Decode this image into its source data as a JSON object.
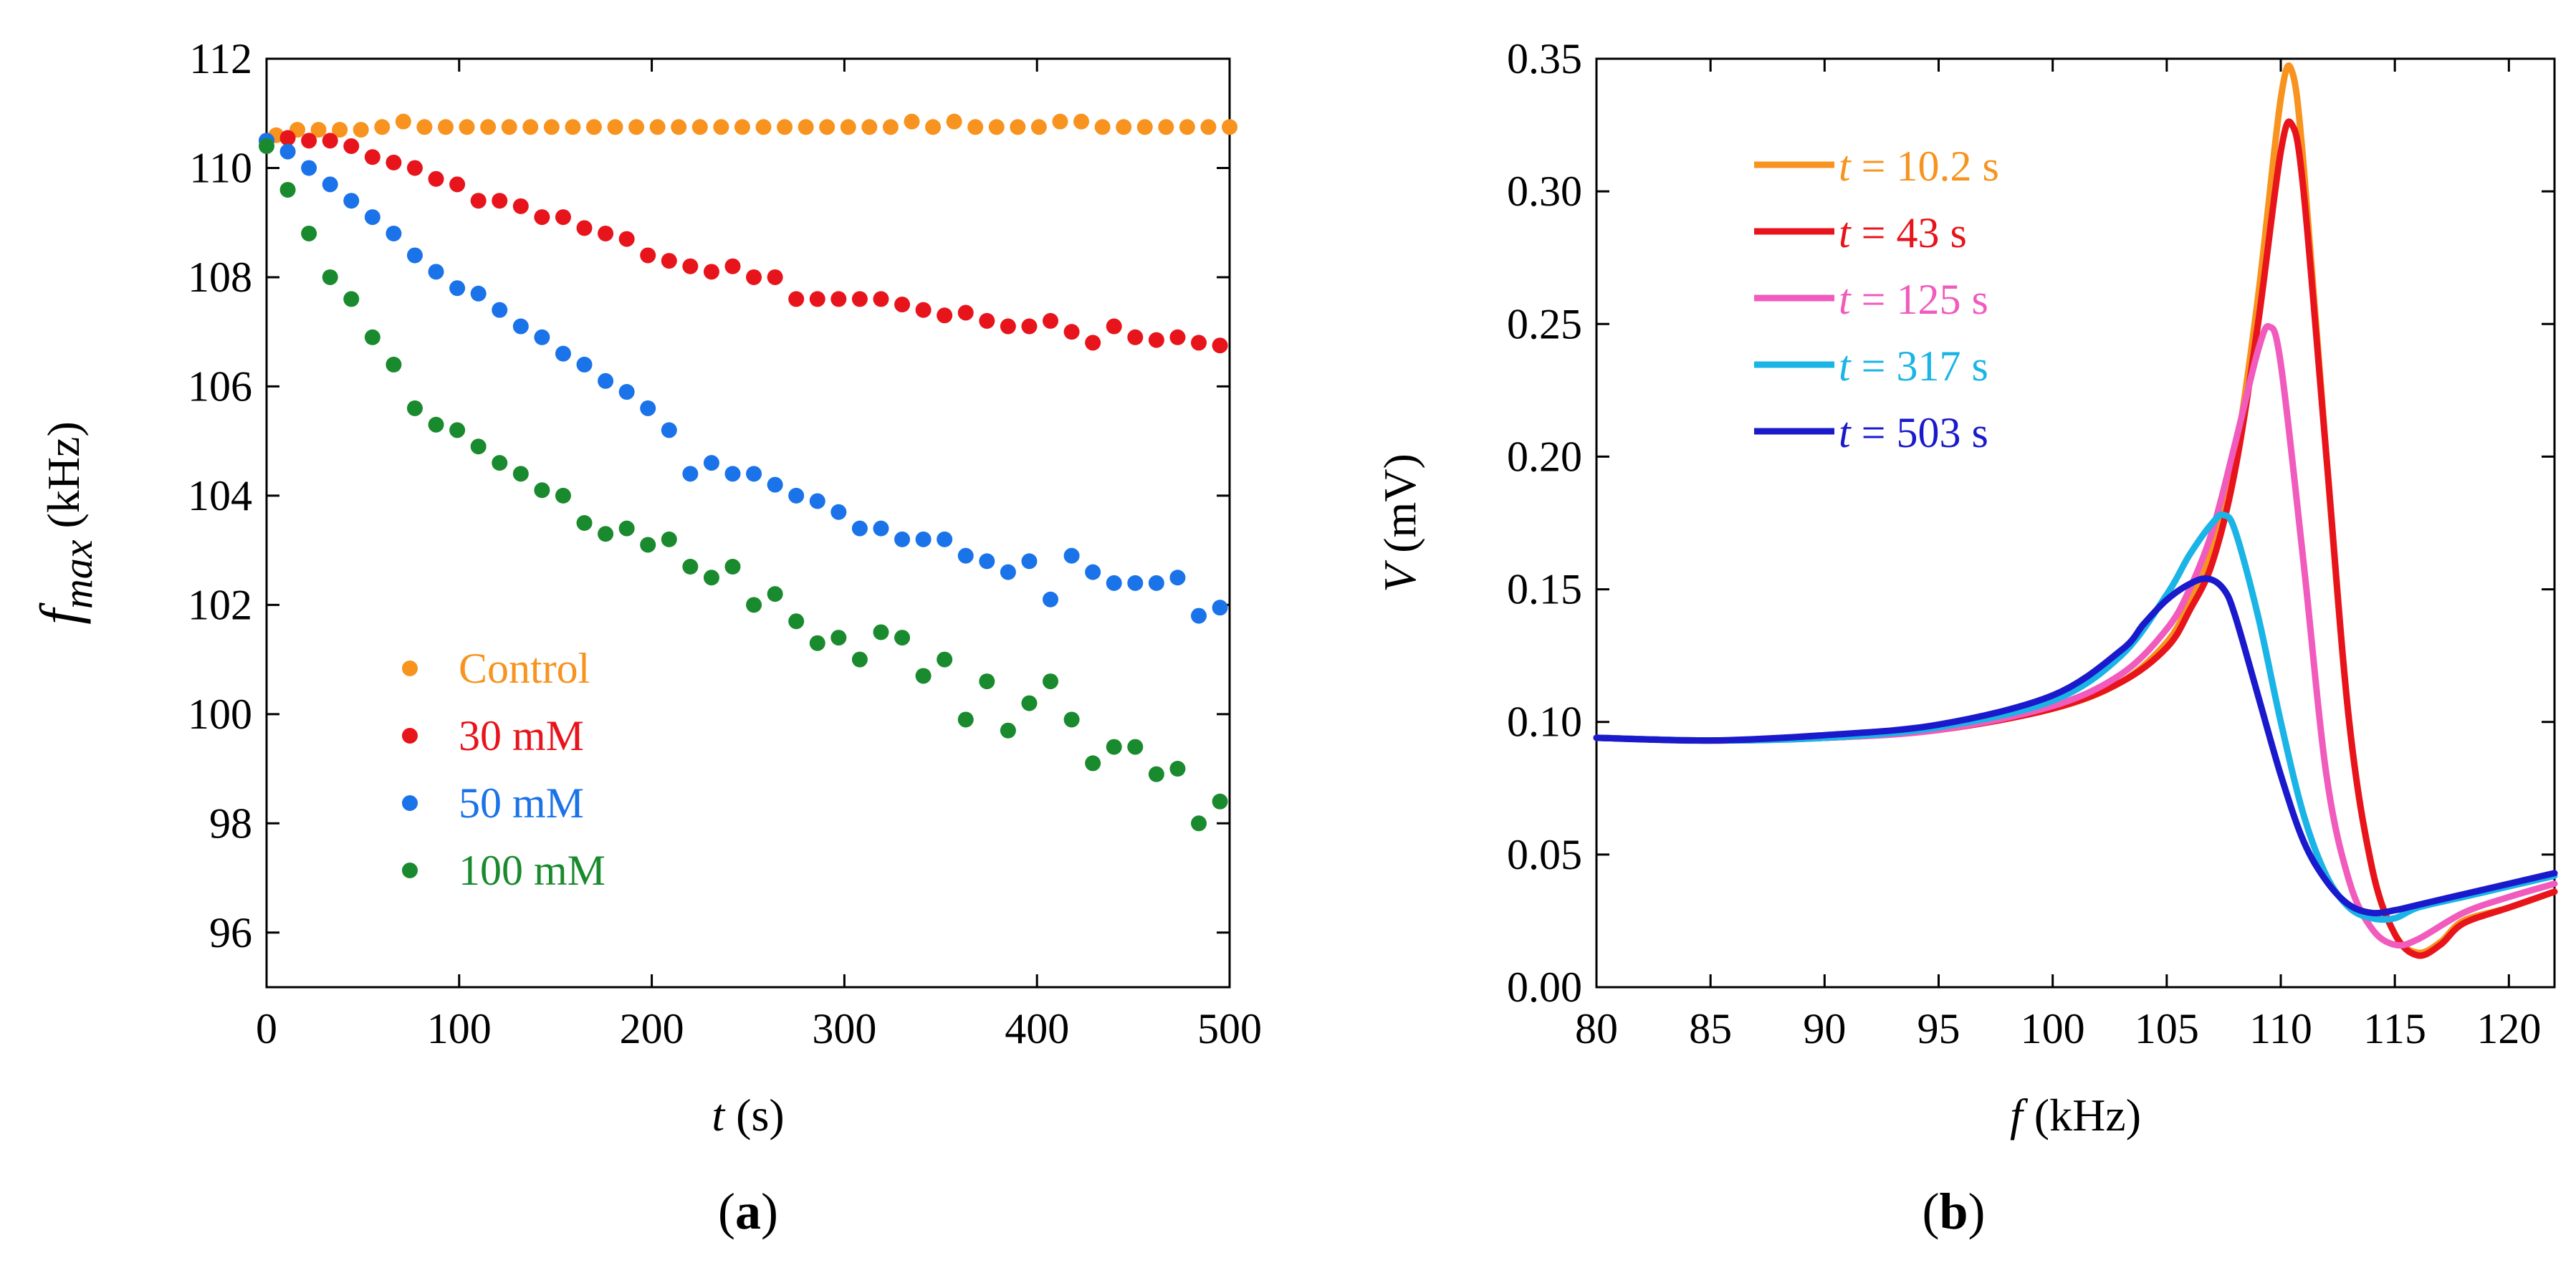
{
  "chart_data": [
    {
      "type": "scatter",
      "panel_label": "(a)",
      "xlabel": {
        "var": "t",
        "unit": " (s)"
      },
      "ylabel": {
        "var": "f",
        "sub": "max",
        "unit": " (kHz)"
      },
      "xlim": [
        0,
        500
      ],
      "ylim": [
        95,
        112
      ],
      "xticks": [
        0,
        100,
        200,
        300,
        400,
        500
      ],
      "yticks": [
        96,
        98,
        100,
        102,
        104,
        106,
        108,
        110,
        112
      ],
      "legend_position": "bottom-left",
      "series": [
        {
          "name": "Control",
          "color": "#f7931e",
          "x": [
            5,
            16,
            27,
            38,
            49,
            60,
            71,
            82,
            93,
            104,
            115,
            126,
            137,
            148,
            159,
            170,
            181,
            192,
            203,
            214,
            225,
            236,
            247,
            258,
            269,
            280,
            291,
            302,
            313,
            324,
            335,
            346,
            357,
            368,
            379,
            390,
            401,
            412,
            423,
            434,
            445,
            456,
            467,
            478,
            489,
            500
          ],
          "y": [
            110.6,
            110.7,
            110.7,
            110.7,
            110.7,
            110.75,
            110.85,
            110.75,
            110.75,
            110.75,
            110.75,
            110.75,
            110.75,
            110.75,
            110.75,
            110.75,
            110.75,
            110.75,
            110.75,
            110.75,
            110.75,
            110.75,
            110.75,
            110.75,
            110.75,
            110.75,
            110.75,
            110.75,
            110.75,
            110.75,
            110.85,
            110.75,
            110.85,
            110.75,
            110.75,
            110.75,
            110.75,
            110.85,
            110.85,
            110.75,
            110.75,
            110.75,
            110.75,
            110.75,
            110.75,
            110.75
          ]
        },
        {
          "name": "30 mM",
          "color": "#e8141b",
          "x": [
            0,
            11,
            22,
            33,
            44,
            55,
            66,
            77,
            88,
            99,
            110,
            121,
            132,
            143,
            154,
            165,
            176,
            187,
            198,
            209,
            220,
            231,
            242,
            253,
            264,
            275,
            286,
            297,
            308,
            319,
            330,
            341,
            352,
            363,
            374,
            385,
            396,
            407,
            418,
            429,
            440,
            451,
            462,
            473,
            484,
            495
          ],
          "y": [
            110.5,
            110.55,
            110.5,
            110.5,
            110.4,
            110.2,
            110.1,
            110.0,
            109.8,
            109.7,
            109.4,
            109.4,
            109.3,
            109.1,
            109.1,
            108.9,
            108.8,
            108.7,
            108.4,
            108.3,
            108.2,
            108.1,
            108.2,
            108.0,
            108.0,
            107.6,
            107.6,
            107.6,
            107.6,
            107.6,
            107.5,
            107.4,
            107.3,
            107.35,
            107.2,
            107.1,
            107.1,
            107.2,
            107.0,
            106.8,
            107.1,
            106.9,
            106.85,
            106.9,
            106.8,
            106.75
          ]
        },
        {
          "name": "50 mM",
          "color": "#1a73e8",
          "x": [
            0,
            11,
            22,
            33,
            44,
            55,
            66,
            77,
            88,
            99,
            110,
            121,
            132,
            143,
            154,
            165,
            176,
            187,
            198,
            209,
            220,
            231,
            242,
            253,
            264,
            275,
            286,
            297,
            308,
            319,
            330,
            341,
            352,
            363,
            374,
            385,
            396,
            407,
            418,
            429,
            440,
            451,
            462,
            473,
            484,
            495
          ],
          "y": [
            110.5,
            110.3,
            110.0,
            109.7,
            109.4,
            109.1,
            108.8,
            108.4,
            108.1,
            107.8,
            107.7,
            107.4,
            107.1,
            106.9,
            106.6,
            106.4,
            106.1,
            105.9,
            105.6,
            105.2,
            104.4,
            104.6,
            104.4,
            104.4,
            104.2,
            104.0,
            103.9,
            103.7,
            103.4,
            103.4,
            103.2,
            103.2,
            103.2,
            102.9,
            102.8,
            102.6,
            102.8,
            102.1,
            102.9,
            102.6,
            102.4,
            102.4,
            102.4,
            102.5,
            101.8,
            101.95
          ]
        },
        {
          "name": "100 mM",
          "color": "#1a8a2e",
          "x": [
            0,
            11,
            22,
            33,
            44,
            55,
            66,
            77,
            88,
            99,
            110,
            121,
            132,
            143,
            154,
            165,
            176,
            187,
            198,
            209,
            220,
            231,
            242,
            253,
            264,
            275,
            286,
            297,
            308,
            319,
            330,
            341,
            352,
            363,
            374,
            385,
            396,
            407,
            418,
            429,
            440,
            451,
            462,
            473,
            484,
            495
          ],
          "y": [
            110.4,
            109.6,
            108.8,
            108.0,
            107.6,
            106.9,
            106.4,
            105.6,
            105.3,
            105.2,
            104.9,
            104.6,
            104.4,
            104.1,
            104.0,
            103.5,
            103.3,
            103.4,
            103.1,
            103.2,
            102.7,
            102.5,
            102.7,
            102.0,
            102.2,
            101.7,
            101.3,
            101.4,
            101.0,
            101.5,
            101.4,
            100.7,
            101.0,
            99.9,
            100.6,
            99.7,
            100.2,
            100.6,
            99.9,
            99.1,
            99.4,
            99.4,
            98.9,
            99.0,
            98.0,
            98.4
          ]
        }
      ]
    },
    {
      "type": "line",
      "panel_label": "(b)",
      "xlabel": {
        "var": "f",
        "unit": " (kHz)"
      },
      "ylabel": {
        "var": "V",
        "unit": " (mV)"
      },
      "xlim": [
        80,
        122
      ],
      "ylim": [
        0,
        0.35
      ],
      "xticks": [
        80,
        85,
        90,
        95,
        100,
        105,
        110,
        115,
        120
      ],
      "yticks": [
        "0.00",
        "0.05",
        "0.10",
        "0.15",
        "0.20",
        "0.25",
        "0.30",
        "0.35"
      ],
      "legend_position": "top-left",
      "series": [
        {
          "name": "10.2 s",
          "label_prefix": "t",
          "label_eq": " = 10.2 s",
          "color": "#f7931e",
          "x": [
            80,
            85,
            90,
            95,
            100,
            103,
            105,
            106,
            107,
            108,
            109,
            110,
            110.5,
            111,
            112,
            113,
            114,
            115,
            116,
            117,
            118,
            120,
            122
          ],
          "y": [
            0.094,
            0.093,
            0.094,
            0.097,
            0.105,
            0.115,
            0.13,
            0.145,
            0.165,
            0.2,
            0.26,
            0.335,
            0.345,
            0.31,
            0.2,
            0.1,
            0.045,
            0.02,
            0.013,
            0.017,
            0.025,
            0.03,
            0.036
          ]
        },
        {
          "name": "43 s",
          "label_prefix": "t",
          "label_eq": " = 43 s",
          "color": "#e8141b",
          "x": [
            80,
            85,
            90,
            95,
            100,
            103,
            105,
            106,
            107,
            108,
            109,
            110,
            110.5,
            111,
            112,
            113,
            114,
            115,
            116,
            117,
            118,
            120,
            122
          ],
          "y": [
            0.094,
            0.093,
            0.094,
            0.097,
            0.105,
            0.115,
            0.128,
            0.142,
            0.16,
            0.195,
            0.25,
            0.315,
            0.325,
            0.3,
            0.2,
            0.1,
            0.045,
            0.02,
            0.012,
            0.016,
            0.024,
            0.03,
            0.036
          ]
        },
        {
          "name": "125 s",
          "label_prefix": "t",
          "label_eq": " = 125 s",
          "color": "#f05bbd",
          "x": [
            80,
            85,
            90,
            95,
            100,
            103,
            105,
            106,
            107,
            108,
            109,
            109.5,
            110,
            111,
            112,
            113,
            114,
            115,
            116,
            118,
            120,
            122
          ],
          "y": [
            0.094,
            0.093,
            0.094,
            0.097,
            0.106,
            0.118,
            0.135,
            0.15,
            0.172,
            0.205,
            0.24,
            0.249,
            0.235,
            0.16,
            0.08,
            0.04,
            0.022,
            0.016,
            0.018,
            0.028,
            0.034,
            0.039
          ]
        },
        {
          "name": "317 s",
          "label_prefix": "t",
          "label_eq": " = 317 s",
          "color": "#1ab4e6",
          "x": [
            80,
            85,
            90,
            95,
            100,
            103,
            105,
            106,
            107,
            107.5,
            108,
            109,
            110,
            111,
            112,
            113,
            114,
            115,
            116,
            118,
            120,
            122
          ],
          "y": [
            0.094,
            0.093,
            0.094,
            0.098,
            0.108,
            0.125,
            0.148,
            0.163,
            0.175,
            0.178,
            0.172,
            0.14,
            0.1,
            0.065,
            0.042,
            0.03,
            0.026,
            0.026,
            0.03,
            0.034,
            0.038,
            0.042
          ]
        },
        {
          "name": "503 s",
          "label_prefix": "t",
          "label_eq": " = 503 s",
          "color": "#1a1acc",
          "x": [
            80,
            85,
            90,
            95,
            100,
            103,
            104,
            105,
            106,
            106.8,
            107.5,
            108,
            109,
            110,
            111,
            112,
            113,
            114,
            115,
            116,
            118,
            120,
            122
          ],
          "y": [
            0.094,
            0.093,
            0.095,
            0.099,
            0.11,
            0.127,
            0.137,
            0.146,
            0.152,
            0.154,
            0.15,
            0.14,
            0.11,
            0.08,
            0.055,
            0.04,
            0.031,
            0.028,
            0.029,
            0.031,
            0.035,
            0.039,
            0.043
          ]
        }
      ]
    }
  ]
}
